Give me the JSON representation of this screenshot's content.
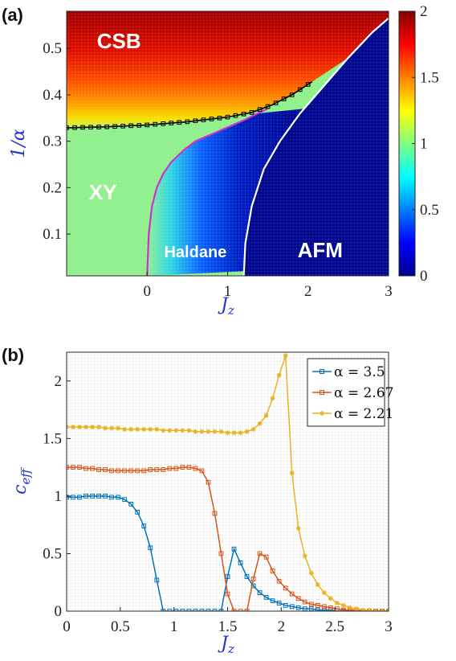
{
  "chart_data": [
    {
      "type": "heatmap",
      "panel_label": "(a)",
      "xlabel": "J",
      "xlabel_sub": "z",
      "ylabel": "1/α",
      "xlim": [
        -1,
        3
      ],
      "ylim": [
        0.01,
        0.58
      ],
      "x_ticks": [
        "0",
        "1",
        "2",
        "3"
      ],
      "y_ticks": [
        "0.1",
        "0.2",
        "0.3",
        "0.4",
        "0.5"
      ],
      "colorbar": {
        "range": [
          0,
          2
        ],
        "ticks": [
          "0",
          "0.5",
          "1",
          "1.5",
          "2"
        ]
      },
      "regions": [
        {
          "label": "CSB",
          "x": -0.35,
          "y": 0.5
        },
        {
          "label": "XY",
          "x": -0.55,
          "y": 0.175
        },
        {
          "label": "Haldane",
          "x": 0.6,
          "y": 0.05
        },
        {
          "label": "AFM",
          "x": 2.15,
          "y": 0.05
        }
      ],
      "boundaries": [
        {
          "name": "black",
          "color": "#000000",
          "x": [
            -1,
            -0.5,
            0,
            0.5,
            1.0,
            1.3,
            1.55,
            1.8,
            2.05
          ],
          "y": [
            0.329,
            0.331,
            0.335,
            0.342,
            0.352,
            0.362,
            0.378,
            0.4,
            0.428
          ]
        },
        {
          "name": "magenta",
          "color": "#d030d0",
          "x": [
            0,
            0.02,
            0.06,
            0.12,
            0.2,
            0.3,
            0.45,
            0.6,
            0.8,
            1.0,
            1.2,
            1.4,
            1.5
          ],
          "y": [
            0.01,
            0.1,
            0.16,
            0.2,
            0.23,
            0.255,
            0.28,
            0.3,
            0.315,
            0.33,
            0.345,
            0.362,
            0.37
          ]
        },
        {
          "name": "white",
          "color": "#ffffff",
          "x": [
            1.2,
            1.22,
            1.3,
            1.45,
            1.65,
            1.9,
            2.2,
            2.5,
            2.8,
            3.0
          ],
          "y": [
            0.01,
            0.08,
            0.16,
            0.24,
            0.3,
            0.36,
            0.42,
            0.48,
            0.535,
            0.565
          ]
        }
      ]
    },
    {
      "type": "line",
      "panel_label": "(b)",
      "xlabel": "J",
      "xlabel_sub": "z",
      "ylabel": "c",
      "ylabel_sub": "eff",
      "xlim": [
        0,
        3
      ],
      "ylim": [
        0,
        2.25
      ],
      "x_ticks": [
        "0",
        "0.5",
        "1",
        "1.5",
        "2",
        "2.5",
        "3"
      ],
      "y_ticks": [
        "0",
        "0.5",
        "1",
        "1.5",
        "2"
      ],
      "grid": true,
      "legend_position": "top-right",
      "x": [
        0,
        0.06,
        0.12,
        0.18,
        0.24,
        0.3,
        0.36,
        0.42,
        0.48,
        0.54,
        0.6,
        0.66,
        0.72,
        0.78,
        0.84,
        0.9,
        0.96,
        1.02,
        1.08,
        1.14,
        1.2,
        1.26,
        1.32,
        1.38,
        1.44,
        1.5,
        1.56,
        1.62,
        1.68,
        1.74,
        1.8,
        1.86,
        1.92,
        1.98,
        2.04,
        2.1,
        2.16,
        2.22,
        2.28,
        2.34,
        2.4,
        2.46,
        2.52,
        2.58,
        2.64,
        2.7,
        2.76,
        2.82,
        2.88,
        2.94,
        3.0
      ],
      "series": [
        {
          "name": "α = 3.5",
          "color": "#0072bd",
          "marker": "square",
          "values": [
            0.99,
            0.99,
            0.99,
            1.0,
            1.0,
            1.0,
            1.0,
            0.99,
            0.99,
            0.97,
            0.93,
            0.86,
            0.74,
            0.55,
            0.27,
            0.0,
            0.0,
            0.0,
            0.0,
            0.0,
            0.0,
            0.0,
            0.0,
            0.0,
            0.0,
            0.3,
            0.54,
            0.42,
            0.3,
            0.22,
            0.16,
            0.12,
            0.09,
            0.07,
            0.05,
            0.04,
            0.03,
            0.02,
            0.02,
            0.01,
            0.01,
            0.01,
            0.0,
            0.0,
            0.0,
            0.0,
            0.0,
            0.0,
            0.0,
            0.0,
            0.0
          ]
        },
        {
          "name": "α = 2.67",
          "color": "#d95319",
          "marker": "square",
          "values": [
            1.25,
            1.25,
            1.25,
            1.24,
            1.24,
            1.23,
            1.23,
            1.22,
            1.22,
            1.22,
            1.22,
            1.22,
            1.22,
            1.23,
            1.23,
            1.23,
            1.24,
            1.24,
            1.25,
            1.25,
            1.24,
            1.22,
            1.12,
            0.85,
            0.5,
            0.15,
            0.0,
            0.0,
            0.0,
            0.28,
            0.5,
            0.47,
            0.35,
            0.26,
            0.2,
            0.15,
            0.11,
            0.08,
            0.06,
            0.05,
            0.04,
            0.03,
            0.02,
            0.01,
            0.01,
            0.01,
            0.0,
            0.0,
            0.0,
            0.0,
            0.0
          ]
        },
        {
          "name": "α = 2.21",
          "color": "#edb120",
          "marker": "star",
          "values": [
            1.6,
            1.6,
            1.6,
            1.6,
            1.6,
            1.6,
            1.59,
            1.59,
            1.59,
            1.58,
            1.58,
            1.58,
            1.58,
            1.58,
            1.58,
            1.57,
            1.57,
            1.57,
            1.57,
            1.57,
            1.56,
            1.56,
            1.56,
            1.56,
            1.56,
            1.55,
            1.55,
            1.55,
            1.56,
            1.58,
            1.63,
            1.7,
            1.85,
            2.05,
            2.22,
            1.2,
            0.72,
            0.48,
            0.33,
            0.23,
            0.16,
            0.11,
            0.07,
            0.05,
            0.03,
            0.02,
            0.01,
            0.01,
            0.0,
            0.0,
            0.0
          ]
        }
      ]
    }
  ]
}
